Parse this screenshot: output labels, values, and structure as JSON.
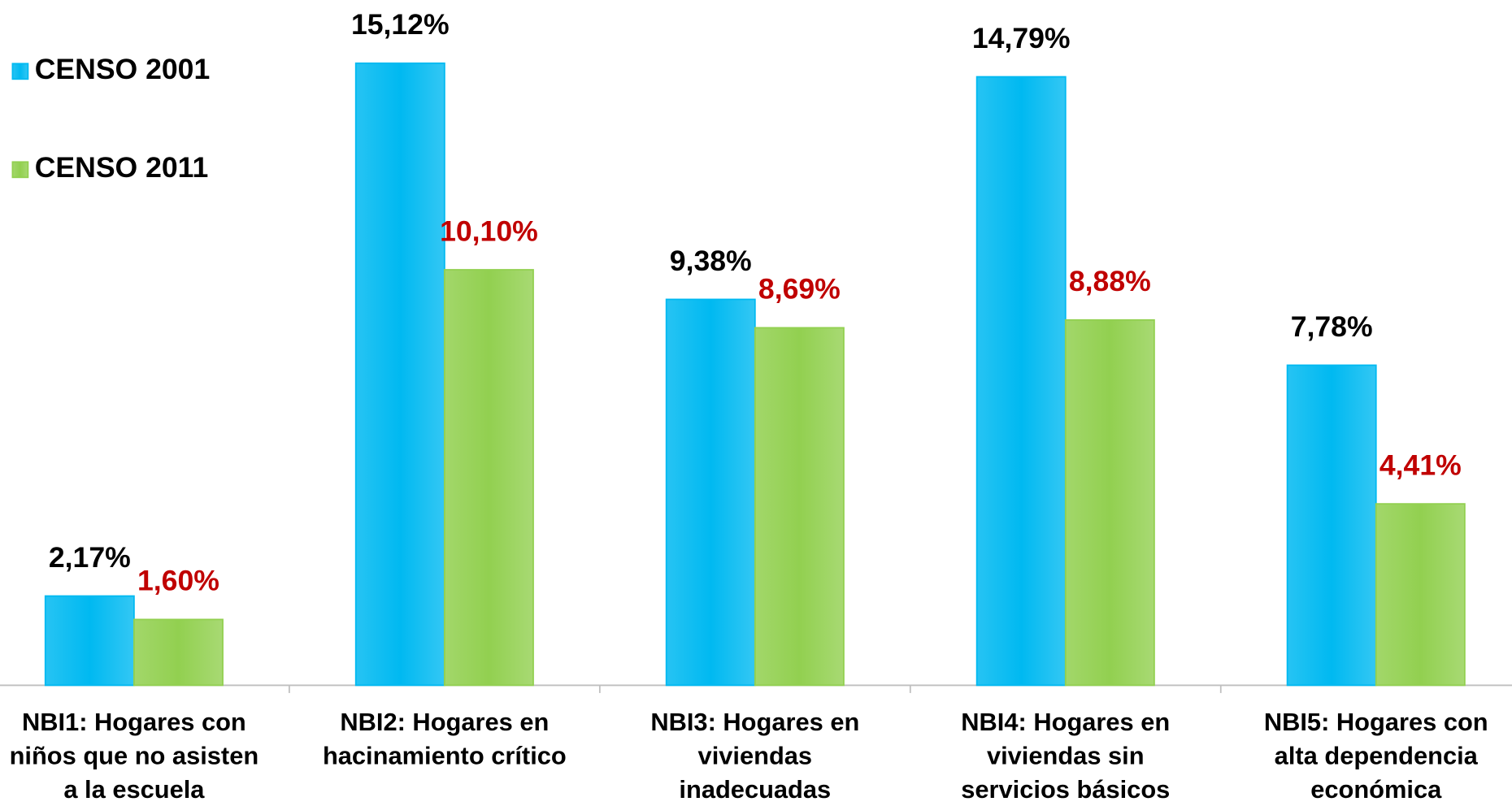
{
  "chart_data": {
    "type": "bar",
    "categories": [
      [
        "NBI1: Hogares con",
        "niños que no asisten",
        "a la escuela"
      ],
      [
        "NBI2: Hogares en",
        "hacinamiento crítico"
      ],
      [
        "NBI3: Hogares en",
        "viviendas",
        "inadecuadas"
      ],
      [
        "NBI4: Hogares en",
        "viviendas sin",
        "servicios básicos"
      ],
      [
        "NBI5: Hogares con",
        "alta dependencia",
        "económica"
      ]
    ],
    "series": [
      {
        "name": "CENSO 2001",
        "color": "#00b9f1",
        "label_color": "#000000",
        "values": [
          2.17,
          15.12,
          9.38,
          14.79,
          7.78
        ],
        "value_labels": [
          "2,17%",
          "15,12%",
          "9,38%",
          "14,79%",
          "7,78%"
        ]
      },
      {
        "name": "CENSO 2011",
        "color": "#92d050",
        "label_color": "#c00000",
        "values": [
          1.6,
          10.1,
          8.69,
          8.88,
          4.41
        ],
        "value_labels": [
          "1,60%",
          "10,10%",
          "8,69%",
          "8,88%",
          "4,41%"
        ]
      }
    ],
    "ylim": [
      0,
      16
    ],
    "legend": "top-left"
  }
}
